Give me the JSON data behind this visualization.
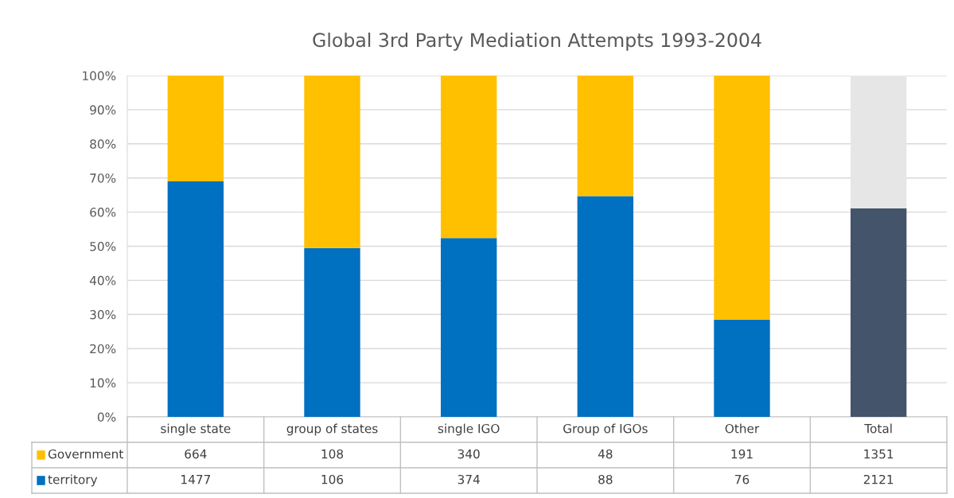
{
  "chart_data": {
    "type": "bar",
    "title": "Global 3rd Party Mediation Attempts 1993-2004",
    "categories": [
      "single state",
      "group of states",
      "single IGO",
      "Group of IGOs",
      "Other",
      "Total"
    ],
    "stacked": true,
    "series": [
      {
        "name": "territory",
        "color": "#0070c0",
        "colors": [
          "#0070c0",
          "#0070c0",
          "#0070c0",
          "#0070c0",
          "#0070c0",
          "#44546a"
        ],
        "values": [
          69.0,
          49.5,
          52.4,
          64.7,
          28.5,
          61.1
        ]
      },
      {
        "name": "Government",
        "color": "#ffc000",
        "colors": [
          "#ffc000",
          "#ffc000",
          "#ffc000",
          "#ffc000",
          "#ffc000",
          "#e7e6e6"
        ],
        "values": [
          31.0,
          50.5,
          47.6,
          35.3,
          71.5,
          38.9
        ]
      }
    ],
    "ylim": [
      0,
      100
    ],
    "yticks": [
      {
        "value": 0,
        "label": "0%"
      },
      {
        "value": 10,
        "label": "10%"
      },
      {
        "value": 20,
        "label": "20%"
      },
      {
        "value": 30,
        "label": "30%"
      },
      {
        "value": 40,
        "label": "40%"
      },
      {
        "value": 50,
        "label": "50%"
      },
      {
        "value": 60,
        "label": "60%"
      },
      {
        "value": 70,
        "label": "70%"
      },
      {
        "value": 80,
        "label": "80%"
      },
      {
        "value": 90,
        "label": "90%"
      },
      {
        "value": 100,
        "label": "100%"
      }
    ],
    "annotations": [
      "664",
      "108",
      "340",
      "48",
      "191",
      "1351",
      "1477",
      "106",
      "374",
      "88",
      "76",
      "2121"
    ],
    "grid": "y",
    "legend": "bottom"
  }
}
